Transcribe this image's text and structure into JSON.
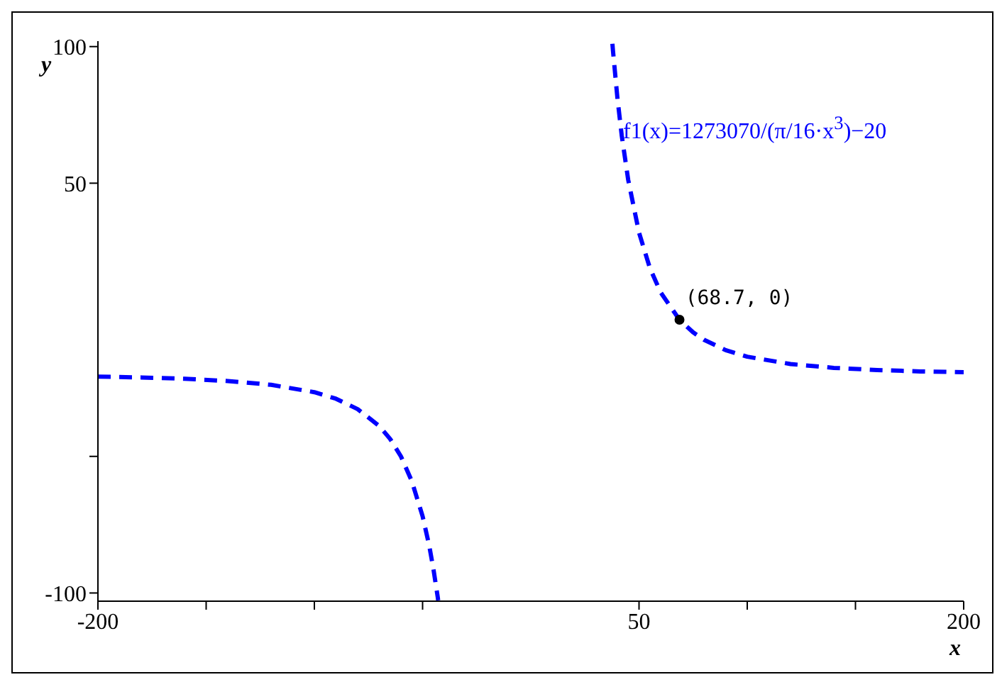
{
  "chart_data": {
    "type": "line",
    "xlabel": "x",
    "ylabel": "y",
    "xlim": [
      -200,
      200
    ],
    "ylim": [
      -103,
      102
    ],
    "xticks": [
      -200,
      {
        "value": -150,
        "label": null
      },
      {
        "value": -100,
        "label": null
      },
      {
        "value": -50,
        "label": null
      },
      50,
      {
        "value": 100,
        "label": null
      },
      {
        "value": 150,
        "label": null
      },
      200
    ],
    "yticks": [
      -100,
      {
        "value": -50,
        "label": null
      },
      50,
      100
    ],
    "grid": false,
    "line_style": "dashed",
    "series": [
      {
        "color": "#0000ff",
        "x": [
          -200,
          -180,
          -160,
          -140,
          -120,
          -100,
          -90,
          -80,
          -70,
          -65,
          -60,
          -55,
          -50,
          -47,
          -45,
          -43,
          -42.8,
          0,
          37.7,
          38,
          40,
          42,
          45,
          50,
          55,
          60,
          68.7,
          75,
          80,
          90,
          100,
          120,
          140,
          160,
          180,
          200
        ],
        "values": [
          -20.8,
          -21.1,
          -21.6,
          -22.4,
          -23.8,
          -26.5,
          -28.9,
          -32.7,
          -38.9,
          -43.6,
          -50.0,
          -59.0,
          -71.9,
          -82.4,
          -91.2,
          -101.5,
          -102.7,
          null,
          101.0,
          98.2,
          81.3,
          67.5,
          51.2,
          31.9,
          19.0,
          10.0,
          0,
          -4.6,
          -7.3,
          -11.1,
          -13.5,
          -16.2,
          -17.6,
          -18.4,
          -18.9,
          -19.2
        ]
      }
    ],
    "annotations": [
      "f1(x)=1273070/(π/16·x$^{3}$)−20",
      {
        "text": "(68.7, 0)",
        "x": 68.7,
        "y": 0
      }
    ]
  }
}
